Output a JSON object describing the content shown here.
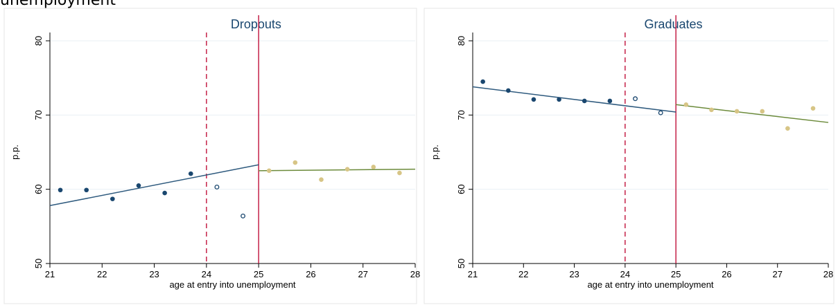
{
  "caption": "unemployment",
  "colors": {
    "pre": "#1a476f",
    "pre_fit": "#2e5a7e",
    "post": "#d7c586",
    "post_fit": "#6b8a3a",
    "cutoff": "#c0103a",
    "title": "#1a476f"
  },
  "chart_data": [
    {
      "type": "scatter",
      "title": "Dropouts",
      "xlabel": "age at entry into unemployment",
      "ylabel": "p.p.",
      "xlim": [
        21,
        28
      ],
      "ylim": [
        50,
        80
      ],
      "xticks": [
        21,
        22,
        23,
        24,
        25,
        26,
        27,
        28
      ],
      "yticks": [
        50,
        60,
        70,
        80
      ],
      "grid": true,
      "placebo_cutoff": 24,
      "cutoff": 25,
      "series": [
        {
          "role": "pre",
          "points": [
            [
              21.2,
              59.9
            ],
            [
              21.7,
              59.9
            ],
            [
              22.2,
              58.7
            ],
            [
              22.7,
              60.5
            ],
            [
              23.2,
              59.5
            ],
            [
              23.7,
              62.1
            ]
          ]
        },
        {
          "role": "pre-hollow",
          "points": [
            [
              24.2,
              60.3
            ],
            [
              24.7,
              56.4
            ]
          ]
        },
        {
          "role": "post",
          "points": [
            [
              25.2,
              62.5
            ],
            [
              25.7,
              63.6
            ],
            [
              26.2,
              61.3
            ],
            [
              26.7,
              62.7
            ],
            [
              27.2,
              63.0
            ],
            [
              27.7,
              62.2
            ]
          ]
        }
      ],
      "fits": [
        {
          "role": "pre",
          "x": [
            21,
            25
          ],
          "y": [
            57.8,
            63.3
          ]
        },
        {
          "role": "post",
          "x": [
            25,
            28
          ],
          "y": [
            62.5,
            62.7
          ]
        }
      ]
    },
    {
      "type": "scatter",
      "title": "Graduates",
      "xlabel": "age at entry into unemployment",
      "ylabel": "p.p.",
      "xlim": [
        21,
        28
      ],
      "ylim": [
        50,
        80
      ],
      "xticks": [
        21,
        22,
        23,
        24,
        25,
        26,
        27,
        28
      ],
      "yticks": [
        50,
        60,
        70,
        80
      ],
      "grid": true,
      "placebo_cutoff": 24,
      "cutoff": 25,
      "series": [
        {
          "role": "pre",
          "points": [
            [
              21.2,
              74.5
            ],
            [
              21.7,
              73.3
            ],
            [
              22.2,
              72.1
            ],
            [
              22.7,
              72.1
            ],
            [
              23.2,
              71.9
            ],
            [
              23.7,
              71.9
            ]
          ]
        },
        {
          "role": "pre-hollow",
          "points": [
            [
              24.2,
              72.2
            ],
            [
              24.7,
              70.3
            ]
          ]
        },
        {
          "role": "post",
          "points": [
            [
              25.2,
              71.4
            ],
            [
              25.7,
              70.7
            ],
            [
              26.2,
              70.5
            ],
            [
              26.7,
              70.5
            ],
            [
              27.2,
              68.2
            ],
            [
              27.7,
              70.9
            ]
          ]
        }
      ],
      "fits": [
        {
          "role": "pre",
          "x": [
            21,
            25
          ],
          "y": [
            73.8,
            70.4
          ]
        },
        {
          "role": "post",
          "x": [
            25,
            28
          ],
          "y": [
            71.4,
            69.0
          ]
        }
      ]
    }
  ]
}
